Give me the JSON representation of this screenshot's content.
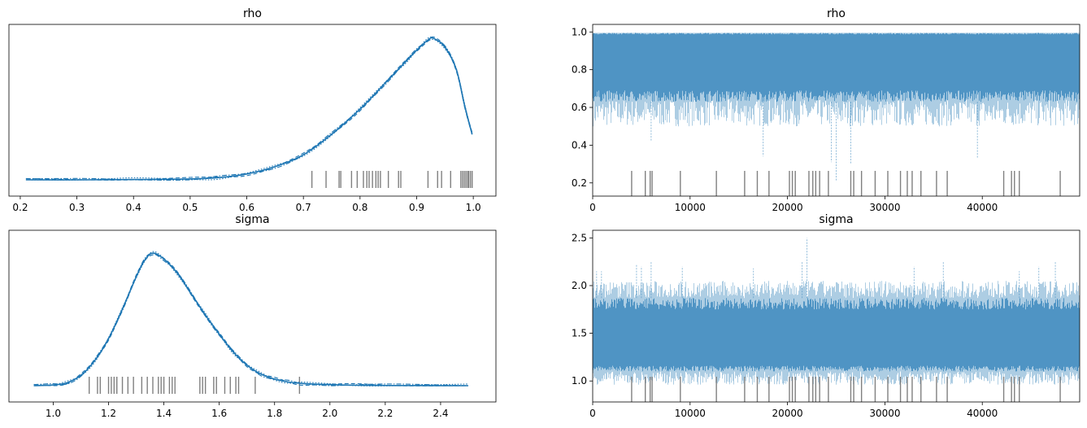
{
  "colors": {
    "series": "#1f77b4",
    "trace": "#4a90c2",
    "rug": "#808080"
  },
  "chart_data": [
    {
      "type": "line",
      "kind": "density",
      "title": "rho",
      "xlim": [
        0.18,
        1.04
      ],
      "x_ticks": [
        0.2,
        0.3,
        0.4,
        0.5,
        0.6,
        0.7,
        0.8,
        0.9,
        1.0
      ],
      "x_tick_labels": [
        "0.2",
        "0.3",
        "0.4",
        "0.5",
        "0.6",
        "0.7",
        "0.8",
        "0.9",
        "1.0"
      ],
      "y_ticks_visible": false,
      "density_curve": {
        "x": [
          0.21,
          0.32,
          0.4,
          0.5,
          0.55,
          0.6,
          0.65,
          0.7,
          0.75,
          0.8,
          0.85,
          0.88,
          0.9,
          0.92,
          0.93,
          0.95,
          0.97,
          0.985,
          0.998
        ],
        "y": [
          0.0,
          0.0,
          0.002,
          0.006,
          0.015,
          0.04,
          0.09,
          0.17,
          0.31,
          0.48,
          0.68,
          0.8,
          0.88,
          0.95,
          0.96,
          0.9,
          0.75,
          0.5,
          0.31
        ]
      },
      "chain_styles": [
        "solid",
        "dashed",
        "dotted",
        "dashdot"
      ],
      "rug": [
        0.715,
        0.74,
        0.763,
        0.766,
        0.785,
        0.795,
        0.806,
        0.812,
        0.816,
        0.822,
        0.828,
        0.832,
        0.836,
        0.85,
        0.868,
        0.872,
        0.92,
        0.937,
        0.944,
        0.96,
        0.978,
        0.981,
        0.984,
        0.987,
        0.99,
        0.992,
        0.995,
        0.998
      ]
    },
    {
      "type": "line",
      "kind": "trace",
      "title": "rho",
      "xlim": [
        0,
        49999
      ],
      "ylim": [
        0.13,
        1.04
      ],
      "x_ticks": [
        0,
        10000,
        20000,
        30000,
        40000
      ],
      "x_tick_labels": [
        "0",
        "10000",
        "20000",
        "30000",
        "40000"
      ],
      "y_ticks": [
        0.2,
        0.4,
        0.6,
        0.8,
        1.0
      ],
      "y_tick_labels": [
        "0.2",
        "0.4",
        "0.6",
        "0.8",
        "1.0"
      ],
      "band": {
        "upper": 0.995,
        "dense_lower": 0.63,
        "sparse_lower": 0.5
      },
      "spikes": [
        [
          6000,
          0.42
        ],
        [
          17500,
          0.34
        ],
        [
          24500,
          0.31
        ],
        [
          25000,
          0.21
        ],
        [
          26500,
          0.3
        ],
        [
          39500,
          0.33
        ]
      ],
      "rug": [
        4000,
        5400,
        5900,
        6100,
        9000,
        12700,
        15600,
        16900,
        18100,
        20200,
        20500,
        20800,
        22200,
        22600,
        22900,
        23300,
        24200,
        26500,
        26800,
        27600,
        29000,
        30300,
        31600,
        32300,
        32800,
        33700,
        35300,
        36400,
        42200,
        43000,
        43300,
        43800,
        48000
      ]
    },
    {
      "type": "line",
      "kind": "density",
      "title": "sigma",
      "xlim": [
        0.84,
        2.6
      ],
      "x_ticks": [
        1.0,
        1.2,
        1.4,
        1.6,
        1.8,
        2.0,
        2.2,
        2.4
      ],
      "x_tick_labels": [
        "1.0",
        "1.2",
        "1.4",
        "1.6",
        "1.8",
        "2.0",
        "2.2",
        "2.4"
      ],
      "y_ticks_visible": false,
      "density_curve": {
        "x": [
          0.93,
          1.0,
          1.05,
          1.1,
          1.15,
          1.2,
          1.25,
          1.3,
          1.33,
          1.36,
          1.4,
          1.45,
          1.5,
          1.55,
          1.6,
          1.65,
          1.7,
          1.75,
          1.8,
          1.85,
          1.9,
          2.0,
          2.1,
          2.24,
          2.5
        ],
        "y": [
          0.0,
          0.005,
          0.02,
          0.07,
          0.17,
          0.32,
          0.52,
          0.74,
          0.85,
          0.9,
          0.86,
          0.76,
          0.62,
          0.48,
          0.35,
          0.23,
          0.14,
          0.08,
          0.045,
          0.025,
          0.015,
          0.007,
          0.003,
          0.001,
          0.0
        ]
      },
      "chain_styles": [
        "solid",
        "dashed",
        "dotted",
        "dashdot"
      ],
      "rug": [
        1.13,
        1.16,
        1.17,
        1.2,
        1.21,
        1.22,
        1.23,
        1.25,
        1.27,
        1.29,
        1.32,
        1.34,
        1.36,
        1.38,
        1.39,
        1.4,
        1.42,
        1.43,
        1.44,
        1.53,
        1.54,
        1.55,
        1.58,
        1.59,
        1.62,
        1.64,
        1.66,
        1.67,
        1.73,
        1.89
      ]
    },
    {
      "type": "line",
      "kind": "trace",
      "title": "sigma",
      "xlim": [
        0,
        49999
      ],
      "ylim": [
        0.78,
        2.58
      ],
      "x_ticks": [
        0,
        10000,
        20000,
        30000,
        40000
      ],
      "x_tick_labels": [
        "0",
        "10000",
        "20000",
        "30000",
        "40000"
      ],
      "y_ticks": [
        1.0,
        1.5,
        2.0,
        2.5
      ],
      "y_tick_labels": [
        "1.0",
        "1.5",
        "2.0",
        "2.5"
      ],
      "band": {
        "upper_dense": 1.87,
        "upper_sparse": 2.05,
        "dense_lower": 1.1,
        "sparse_lower": 0.96
      },
      "spikes": [
        [
          400,
          2.15
        ],
        [
          900,
          2.15
        ],
        [
          4500,
          2.22
        ],
        [
          5000,
          2.2
        ],
        [
          6000,
          2.25
        ],
        [
          9200,
          2.2
        ],
        [
          16500,
          2.18
        ],
        [
          21500,
          2.25
        ],
        [
          22000,
          2.5
        ],
        [
          33000,
          2.2
        ],
        [
          36000,
          2.25
        ],
        [
          43800,
          2.15
        ],
        [
          45800,
          2.2
        ],
        [
          47500,
          2.25
        ]
      ],
      "rug": [
        4000,
        5400,
        5900,
        6100,
        9000,
        12700,
        15600,
        16900,
        18100,
        20200,
        20500,
        20800,
        22200,
        22600,
        22900,
        23300,
        24200,
        26500,
        26800,
        27600,
        29000,
        30300,
        31600,
        32300,
        32800,
        33700,
        35300,
        36400,
        42200,
        43000,
        43300,
        43800,
        48000
      ]
    }
  ]
}
